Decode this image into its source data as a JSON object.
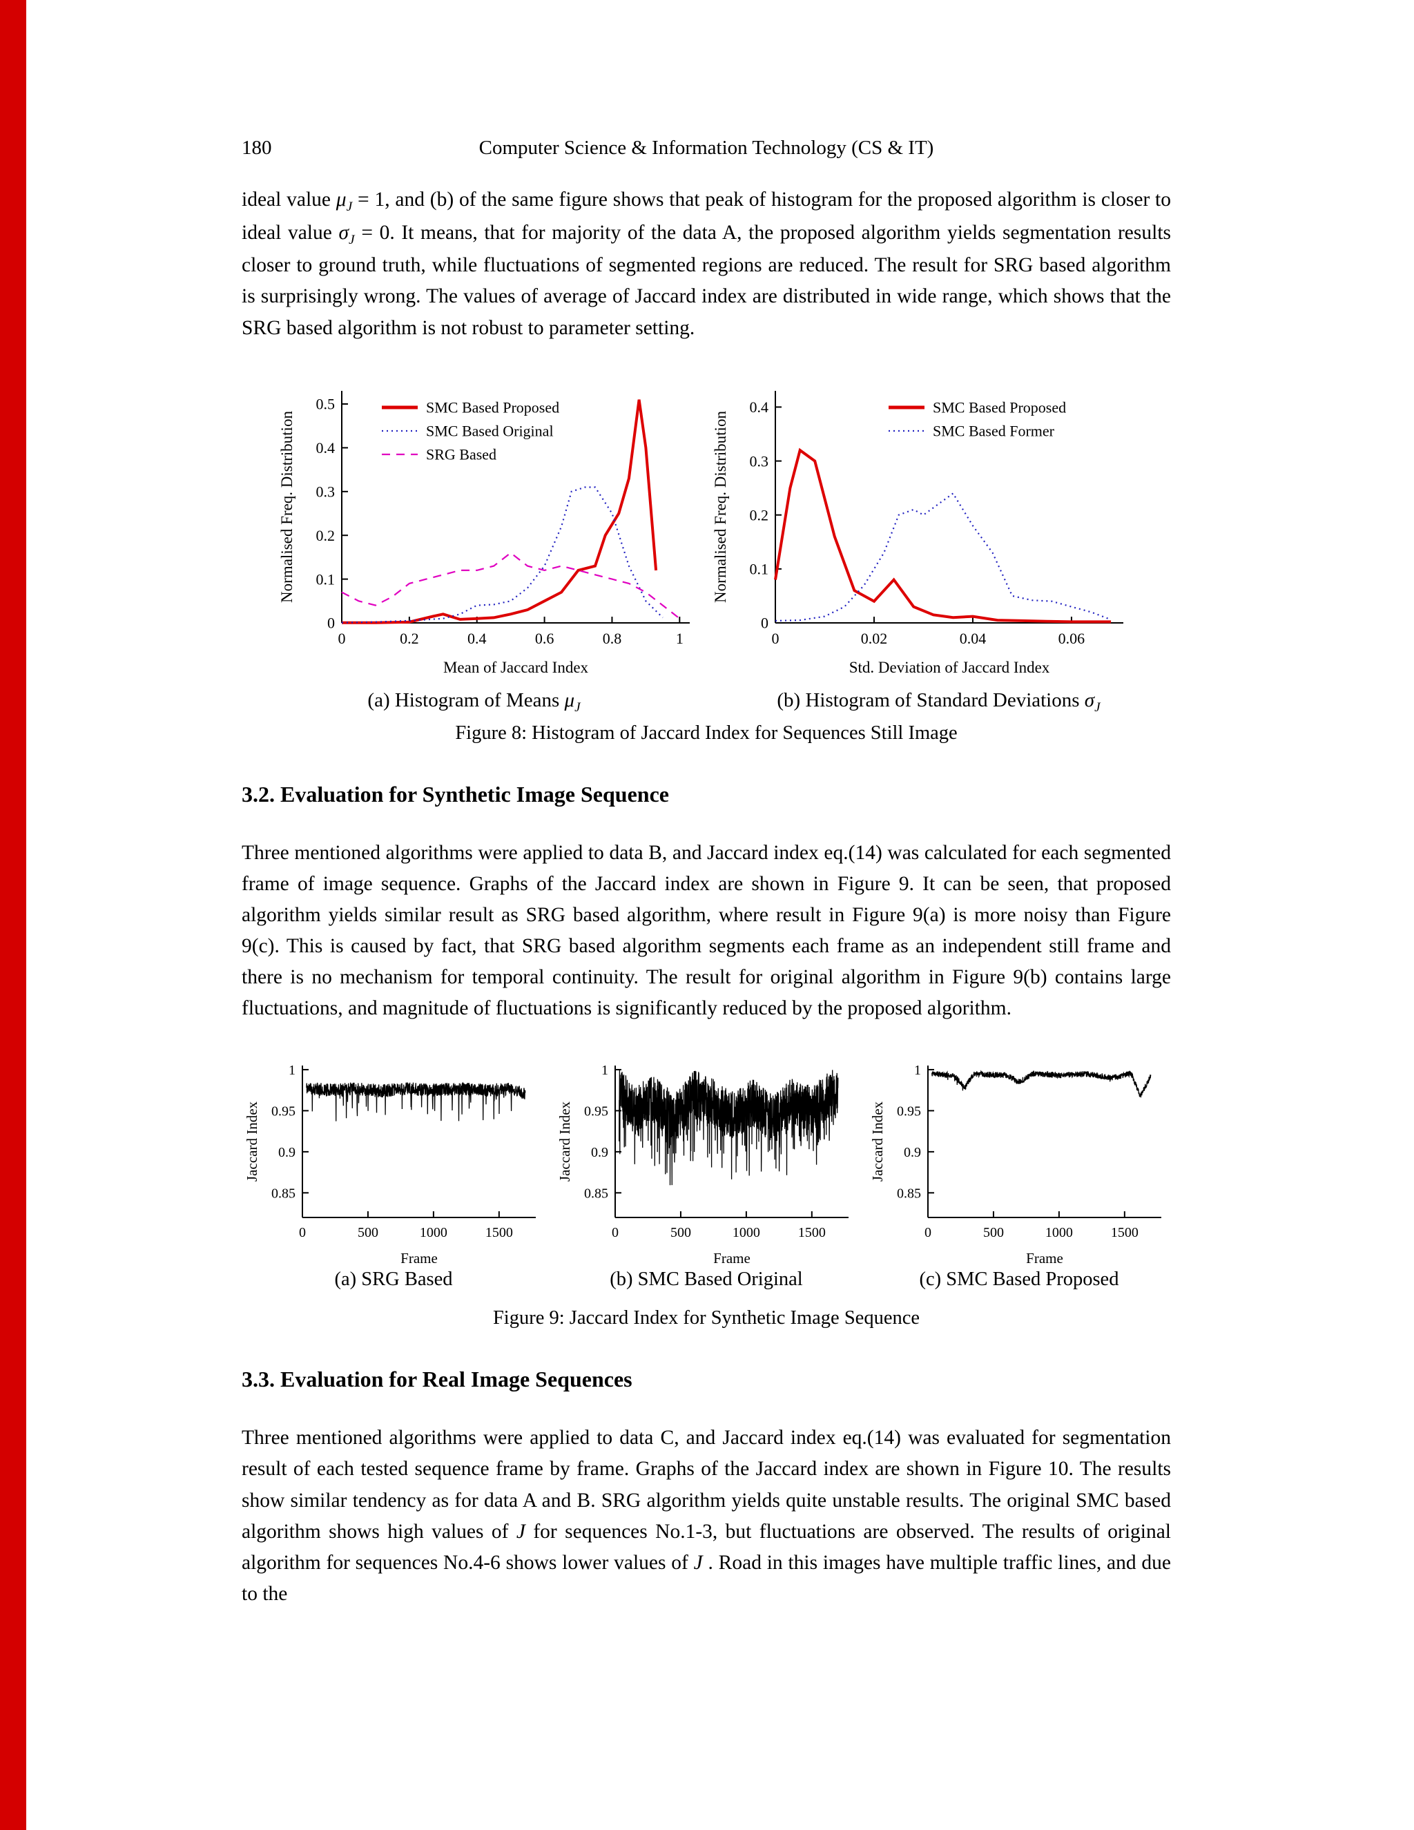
{
  "header": {
    "page_number": "180",
    "journal": "Computer Science & Information Technology (CS & IT)"
  },
  "sections": {
    "s32": "3.2. Evaluation for Synthetic Image Sequence",
    "s33": "3.3. Evaluation for Real Image Sequences"
  },
  "paragraphs": {
    "p1": {
      "runs": [
        {
          "text": "ideal value "
        },
        {
          "math": "μ",
          "sub": "J"
        },
        {
          "text": " = 1, and (b) of the same figure shows that peak of histogram for the proposed algorithm is closer to ideal value "
        },
        {
          "math": "σ",
          "sub": "J"
        },
        {
          "text": " = 0. It means, that for majority of the data A, the proposed algorithm yields segmentation results closer to ground truth, while fluctuations of segmented regions are reduced. The result for SRG based algorithm is surprisingly wrong. The values of average of Jaccard index are distributed in wide range, which shows that the SRG based algorithm is not robust to parameter setting."
        }
      ]
    },
    "p2": {
      "runs": [
        {
          "text": "Three mentioned algorithms were applied to data B, and Jaccard index eq.(14) was calculated for each segmented frame of image sequence. Graphs of the Jaccard index are shown in Figure 9.  It can be seen, that proposed algorithm yields similar result as SRG based algorithm, where result in Figure 9(a) is more noisy than Figure 9(c).  This is caused by fact, that SRG based algorithm segments each frame as an independent still frame and there is no mechanism for temporal continuity. The result for original algorithm in Figure 9(b) contains large fluctuations, and magnitude of fluctuations is significantly reduced by the proposed algorithm."
        }
      ]
    },
    "p3": {
      "runs": [
        {
          "text": "Three mentioned algorithms were applied to data C, and Jaccard index eq.(14) was evaluated for segmentation result of each tested sequence frame by frame.  Graphs of the Jaccard index are shown in Figure 10.  The results show similar tendency as for data A and B. SRG algorithm yields quite unstable results.  The original SMC based algorithm shows high values of "
        },
        {
          "math": "J"
        },
        {
          "text": " for sequences No.1-3, but fluctuations are observed. The results of original algorithm for sequences No.4-6 shows lower values of "
        },
        {
          "math": "J"
        },
        {
          "text": " . Road in this images have multiple traffic lines, and due to the"
        }
      ]
    }
  },
  "figure8": {
    "caption_a_runs": [
      {
        "text": "(a) Histogram of Means "
      },
      {
        "math": "μ",
        "sub": "J"
      }
    ],
    "caption_b_runs": [
      {
        "text": "(b) Histogram of Standard Deviations "
      },
      {
        "math": "σ",
        "sub": "J"
      }
    ],
    "caption": "Figure 8: Histogram of Jaccard Index for Sequences Still Image"
  },
  "figure9": {
    "caption_a": "(a) SRG Based",
    "caption_b": "(b) SMC Based Original",
    "caption_c": "(c) SMC Based Proposed",
    "caption": "Figure 9: Jaccard Index for Synthetic Image Sequence"
  },
  "chart_data": [
    {
      "id": "fig8a",
      "type": "line",
      "xlabel": "Mean of Jaccard Index",
      "ylabel": "Normalised Freq. Distribution",
      "xlim": [
        0,
        1.03
      ],
      "ylim": [
        0,
        0.53
      ],
      "xticks": [
        0,
        0.2,
        0.4,
        0.6,
        0.8,
        1
      ],
      "yticks": [
        0,
        0.1,
        0.2,
        0.3,
        0.4,
        0.5
      ],
      "legend_position": "top-left",
      "series": [
        {
          "name": "SMC Based Proposed",
          "style": "solid",
          "color": "#dd0000",
          "points": [
            [
              0,
              0
            ],
            [
              0.1,
              0
            ],
            [
              0.2,
              0.002
            ],
            [
              0.27,
              0.015
            ],
            [
              0.3,
              0.02
            ],
            [
              0.35,
              0.008
            ],
            [
              0.4,
              0.01
            ],
            [
              0.45,
              0.012
            ],
            [
              0.5,
              0.02
            ],
            [
              0.55,
              0.03
            ],
            [
              0.6,
              0.05
            ],
            [
              0.65,
              0.07
            ],
            [
              0.7,
              0.12
            ],
            [
              0.75,
              0.13
            ],
            [
              0.78,
              0.2
            ],
            [
              0.82,
              0.25
            ],
            [
              0.85,
              0.33
            ],
            [
              0.88,
              0.51
            ],
            [
              0.9,
              0.4
            ],
            [
              0.93,
              0.12
            ]
          ]
        },
        {
          "name": "SMC Based Original",
          "style": "dotted",
          "color": "#2020c0",
          "points": [
            [
              0,
              0
            ],
            [
              0.1,
              0.002
            ],
            [
              0.2,
              0.005
            ],
            [
              0.3,
              0.01
            ],
            [
              0.35,
              0.02
            ],
            [
              0.4,
              0.04
            ],
            [
              0.45,
              0.042
            ],
            [
              0.5,
              0.05
            ],
            [
              0.55,
              0.08
            ],
            [
              0.6,
              0.13
            ],
            [
              0.65,
              0.22
            ],
            [
              0.68,
              0.3
            ],
            [
              0.72,
              0.31
            ],
            [
              0.75,
              0.31
            ],
            [
              0.8,
              0.25
            ],
            [
              0.85,
              0.13
            ],
            [
              0.9,
              0.05
            ],
            [
              0.95,
              0.012
            ]
          ]
        },
        {
          "name": "SRG Based",
          "style": "dashed",
          "color": "#e000c0",
          "points": [
            [
              0,
              0.07
            ],
            [
              0.05,
              0.05
            ],
            [
              0.1,
              0.04
            ],
            [
              0.15,
              0.06
            ],
            [
              0.2,
              0.09
            ],
            [
              0.25,
              0.1
            ],
            [
              0.3,
              0.11
            ],
            [
              0.35,
              0.12
            ],
            [
              0.4,
              0.12
            ],
            [
              0.45,
              0.13
            ],
            [
              0.5,
              0.16
            ],
            [
              0.55,
              0.13
            ],
            [
              0.6,
              0.12
            ],
            [
              0.65,
              0.13
            ],
            [
              0.7,
              0.12
            ],
            [
              0.75,
              0.11
            ],
            [
              0.8,
              0.1
            ],
            [
              0.85,
              0.09
            ],
            [
              0.9,
              0.07
            ],
            [
              0.95,
              0.04
            ],
            [
              1,
              0.01
            ]
          ]
        }
      ]
    },
    {
      "id": "fig8b",
      "type": "line",
      "xlabel": "Std. Deviation of Jaccard Index",
      "ylabel": "Normalised Freq. Distribution",
      "xlim": [
        0,
        0.0705
      ],
      "ylim": [
        0,
        0.43
      ],
      "xticks": [
        0,
        0.02,
        0.04,
        0.06
      ],
      "yticks": [
        0,
        0.1,
        0.2,
        0.3,
        0.4
      ],
      "legend_position": "top-right",
      "series": [
        {
          "name": "SMC Based Proposed",
          "style": "solid",
          "color": "#dd0000",
          "points": [
            [
              0,
              0.08
            ],
            [
              0.003,
              0.25
            ],
            [
              0.005,
              0.32
            ],
            [
              0.008,
              0.3
            ],
            [
              0.012,
              0.16
            ],
            [
              0.016,
              0.06
            ],
            [
              0.02,
              0.04
            ],
            [
              0.024,
              0.08
            ],
            [
              0.028,
              0.03
            ],
            [
              0.032,
              0.015
            ],
            [
              0.036,
              0.01
            ],
            [
              0.04,
              0.012
            ],
            [
              0.045,
              0.005
            ],
            [
              0.05,
              0.004
            ],
            [
              0.055,
              0.003
            ],
            [
              0.06,
              0.002
            ],
            [
              0.068,
              0.002
            ]
          ]
        },
        {
          "name": "SMC Based Former",
          "style": "dotted",
          "color": "#2020c0",
          "points": [
            [
              0,
              0.004
            ],
            [
              0.005,
              0.005
            ],
            [
              0.01,
              0.012
            ],
            [
              0.014,
              0.03
            ],
            [
              0.018,
              0.07
            ],
            [
              0.022,
              0.13
            ],
            [
              0.025,
              0.2
            ],
            [
              0.028,
              0.21
            ],
            [
              0.03,
              0.2
            ],
            [
              0.033,
              0.22
            ],
            [
              0.036,
              0.24
            ],
            [
              0.04,
              0.18
            ],
            [
              0.044,
              0.13
            ],
            [
              0.048,
              0.05
            ],
            [
              0.052,
              0.042
            ],
            [
              0.056,
              0.04
            ],
            [
              0.06,
              0.03
            ],
            [
              0.064,
              0.02
            ],
            [
              0.068,
              0.006
            ]
          ]
        }
      ]
    },
    {
      "id": "fig9a",
      "type": "line",
      "xlabel": "Frame",
      "ylabel": "Jaccard Index",
      "xlim": [
        0,
        1780
      ],
      "ylim": [
        0.82,
        1.005
      ],
      "xticks": [
        0,
        500,
        1000,
        1500
      ],
      "yticks": [
        0.85,
        0.9,
        0.95,
        1
      ],
      "series": [
        {
          "name": "SRG Based",
          "style": "noisy",
          "color": "#000000",
          "seed": 11,
          "n": 1100,
          "x0": 30,
          "x1": 1700,
          "noise": 0.008,
          "spike_prob": 0.05,
          "spike_depth": 0.035,
          "cap": 1.0,
          "keypoints": [
            [
              30,
              0.978
            ],
            [
              200,
              0.975
            ],
            [
              400,
              0.977
            ],
            [
              600,
              0.974
            ],
            [
              800,
              0.977
            ],
            [
              1000,
              0.975
            ],
            [
              1200,
              0.977
            ],
            [
              1400,
              0.975
            ],
            [
              1600,
              0.976
            ],
            [
              1700,
              0.97
            ]
          ]
        }
      ]
    },
    {
      "id": "fig9b",
      "type": "line",
      "xlabel": "Frame",
      "ylabel": "Jaccard Index",
      "xlim": [
        0,
        1780
      ],
      "ylim": [
        0.82,
        1.005
      ],
      "xticks": [
        0,
        500,
        1000,
        1500
      ],
      "yticks": [
        0.85,
        0.9,
        0.95,
        1
      ],
      "series": [
        {
          "name": "SMC Based Original",
          "style": "noisy",
          "color": "#000000",
          "seed": 23,
          "n": 1400,
          "x0": 30,
          "x1": 1700,
          "noise": 0.03,
          "spike_prob": 0.12,
          "spike_depth": 0.06,
          "cap": 1.0,
          "keypoints": [
            [
              30,
              0.975
            ],
            [
              150,
              0.95
            ],
            [
              300,
              0.965
            ],
            [
              450,
              0.94
            ],
            [
              600,
              0.97
            ],
            [
              750,
              0.96
            ],
            [
              900,
              0.945
            ],
            [
              1050,
              0.96
            ],
            [
              1200,
              0.94
            ],
            [
              1350,
              0.96
            ],
            [
              1500,
              0.95
            ],
            [
              1650,
              0.97
            ]
          ]
        }
      ]
    },
    {
      "id": "fig9c",
      "type": "line",
      "xlabel": "Frame",
      "ylabel": "Jaccard Index",
      "xlim": [
        0,
        1780
      ],
      "ylim": [
        0.82,
        1.005
      ],
      "xticks": [
        0,
        500,
        1000,
        1500
      ],
      "yticks": [
        0.85,
        0.9,
        0.95,
        1
      ],
      "series": [
        {
          "name": "SMC Based Proposed",
          "style": "noisy",
          "color": "#000000",
          "seed": 5,
          "n": 1100,
          "x0": 30,
          "x1": 1700,
          "noise": 0.0035,
          "spike_prob": 0.008,
          "spike_depth": 0.012,
          "cap": 1.0,
          "keypoints": [
            [
              30,
              0.995
            ],
            [
              200,
              0.993
            ],
            [
              280,
              0.978
            ],
            [
              350,
              0.995
            ],
            [
              600,
              0.993
            ],
            [
              700,
              0.985
            ],
            [
              800,
              0.995
            ],
            [
              1000,
              0.993
            ],
            [
              1200,
              0.995
            ],
            [
              1400,
              0.99
            ],
            [
              1550,
              0.995
            ],
            [
              1620,
              0.968
            ],
            [
              1700,
              0.992
            ]
          ]
        }
      ]
    }
  ]
}
